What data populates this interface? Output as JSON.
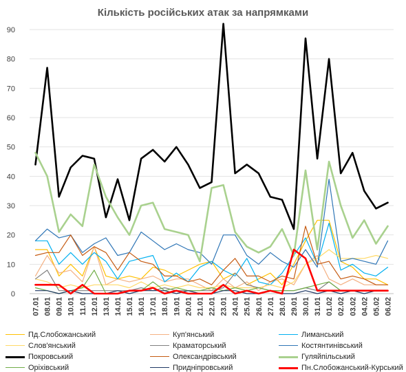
{
  "chart_data": {
    "type": "line",
    "title": "Кількість російських атак за напрямками",
    "xlabel": "",
    "ylabel": "",
    "ylim": [
      0,
      90
    ],
    "yticks": [
      0,
      10,
      20,
      30,
      40,
      50,
      60,
      70,
      80,
      90
    ],
    "grid": true,
    "legend_position": "bottom",
    "x": [
      "07.01",
      "08.01",
      "09.01",
      "10.01",
      "11.01",
      "12.01",
      "13.01",
      "14.01",
      "15.01",
      "16.01",
      "17.01",
      "18.01",
      "19.01",
      "20.01",
      "21.01",
      "22.01",
      "23.01",
      "24.01",
      "25.01",
      "26.01",
      "27.01",
      "28.01",
      "29.01",
      "30.01",
      "31.01",
      "01.02",
      "02.02",
      "03.02",
      "04.02",
      "05.02",
      "06.02"
    ],
    "series": [
      {
        "name": "Пд.Слобожанський",
        "color": "#ffc000",
        "width": 1.2,
        "values": [
          15,
          15,
          6,
          10,
          6,
          16,
          6,
          5,
          6,
          5,
          9,
          8,
          6,
          8,
          10,
          11,
          5,
          7,
          3,
          5,
          7,
          3,
          10,
          18,
          25,
          25,
          11,
          9,
          5,
          5,
          3
        ]
      },
      {
        "name": "Куп'янський",
        "color": "#f4b183",
        "width": 1.2,
        "values": [
          6,
          13,
          7,
          8,
          4,
          16,
          3,
          5,
          4,
          5,
          6,
          4,
          5,
          5,
          3,
          1,
          5,
          2,
          4,
          1,
          4,
          5,
          3,
          10,
          13,
          5,
          3,
          5,
          3,
          3,
          3
        ]
      },
      {
        "name": "Лиманський",
        "color": "#00b0f0",
        "width": 1.2,
        "values": [
          18,
          18,
          10,
          14,
          10,
          14,
          11,
          5,
          11,
          12,
          13,
          4,
          7,
          4,
          9,
          11,
          8,
          6,
          12,
          4,
          3,
          7,
          13,
          19,
          10,
          24,
          8,
          10,
          7,
          6,
          9
        ]
      },
      {
        "name": "Слов'янський",
        "color": "#ffd966",
        "width": 1.2,
        "values": [
          5,
          4,
          2,
          3,
          2,
          3,
          3,
          3,
          2,
          4,
          2,
          3,
          2,
          3,
          2,
          2,
          3,
          2,
          2,
          2,
          3,
          2,
          4,
          10,
          12,
          15,
          12,
          12,
          12,
          13,
          12
        ]
      },
      {
        "name": "Краматорський",
        "color": "#808080",
        "width": 1.2,
        "values": [
          5,
          8,
          1,
          1,
          1,
          1,
          1,
          1,
          1,
          2,
          1,
          2,
          1,
          1,
          1,
          1,
          2,
          7,
          3,
          2,
          1,
          1,
          1,
          2,
          1,
          4,
          1,
          1,
          1,
          1,
          1
        ]
      },
      {
        "name": "Костянтинівський",
        "color": "#2e75b6",
        "width": 1.2,
        "values": [
          18,
          22,
          19,
          20,
          14,
          17,
          19,
          13,
          14,
          21,
          18,
          15,
          17,
          15,
          14,
          10,
          20,
          20,
          13,
          10,
          14,
          11,
          9,
          15,
          9,
          39,
          11,
          12,
          11,
          10,
          18
        ]
      },
      {
        "name": "Покровський",
        "color": "#000000",
        "width": 2.6,
        "values": [
          44,
          77,
          33,
          43,
          47,
          46,
          26,
          39,
          25,
          46,
          49,
          45,
          50,
          44,
          36,
          38,
          92,
          41,
          44,
          41,
          33,
          32,
          22,
          87,
          46,
          80,
          41,
          48,
          35,
          29,
          31
        ]
      },
      {
        "name": "Олександрівський",
        "color": "#c55a11",
        "width": 1.2,
        "values": [
          13,
          14,
          14,
          20,
          13,
          16,
          14,
          8,
          14,
          11,
          10,
          6,
          6,
          4,
          5,
          3,
          8,
          12,
          6,
          6,
          4,
          6,
          5,
          23,
          10,
          11,
          5,
          6,
          5,
          3,
          3
        ]
      },
      {
        "name": "Гуляйпільський",
        "color": "#a9d18e",
        "width": 2.6,
        "values": [
          48,
          40,
          21,
          27,
          23,
          44,
          33,
          26,
          20,
          30,
          31,
          22,
          21,
          20,
          11,
          36,
          37,
          21,
          16,
          14,
          16,
          22,
          13,
          42,
          15,
          45,
          30,
          19,
          25,
          17,
          23
        ]
      },
      {
        "name": "Оріхівський",
        "color": "#70ad47",
        "width": 1.2,
        "values": [
          2,
          1,
          0,
          1,
          2,
          8,
          0,
          0,
          1,
          1,
          4,
          1,
          2,
          1,
          1,
          2,
          1,
          2,
          1,
          2,
          1,
          1,
          1,
          2,
          3,
          4,
          1,
          1,
          1,
          1,
          1
        ]
      },
      {
        "name": "Придніпровський",
        "color": "#1f3864",
        "width": 1.2,
        "values": [
          1,
          1,
          0,
          1,
          0,
          0,
          0,
          1,
          0,
          1,
          1,
          1,
          0,
          1,
          0,
          0,
          1,
          1,
          0,
          0,
          1,
          0,
          0,
          1,
          0,
          1,
          0,
          1,
          0,
          1,
          1
        ]
      },
      {
        "name": "Пн.Слобожанський-Курський",
        "color": "#ff0000",
        "width": 2.6,
        "values": [
          3,
          3,
          3,
          0,
          3,
          0,
          0,
          0,
          1,
          1,
          2,
          0,
          1,
          0,
          0,
          0,
          3,
          0,
          1,
          0,
          1,
          0,
          15,
          12,
          1,
          1,
          1,
          1,
          1,
          1,
          1
        ]
      }
    ]
  }
}
